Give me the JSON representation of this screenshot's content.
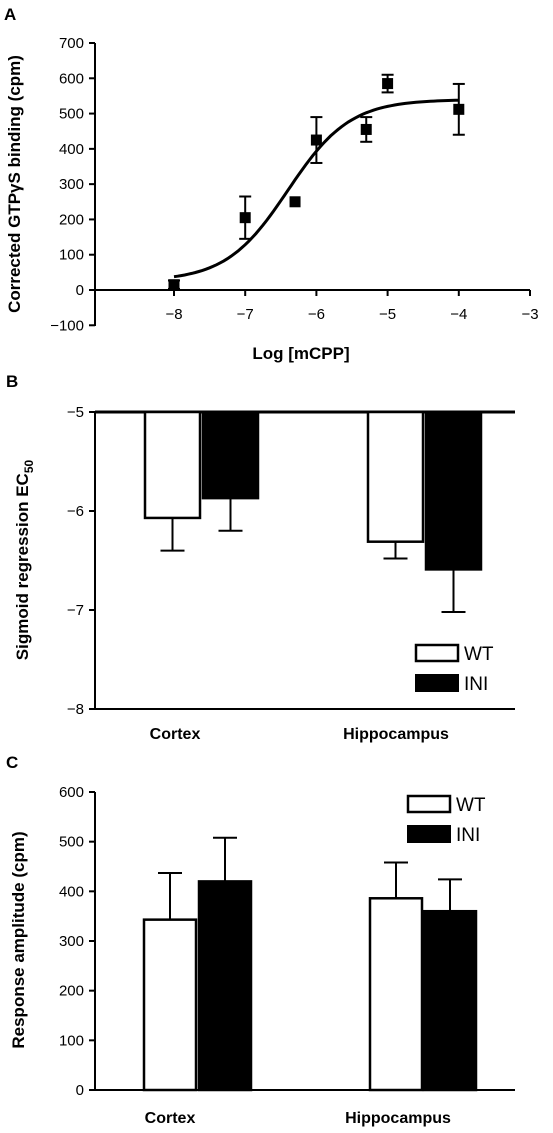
{
  "chart_data": [
    {
      "panel": "A",
      "type": "scatter",
      "xlabel": "Log [mCPP]",
      "ylabel": "Corrected GTPγS binding (cpm)",
      "xlim": [
        -8.5,
        -3
      ],
      "ylim": [
        -100,
        700
      ],
      "xticks": [
        -8,
        -7,
        -6,
        -5,
        -4,
        -3
      ],
      "yticks": [
        -100,
        0,
        100,
        200,
        300,
        400,
        500,
        600,
        700
      ],
      "xtick_labels": [
        "−8",
        "−7",
        "−6",
        "−5",
        "−4",
        "−3"
      ],
      "ytick_labels": [
        "−100",
        "0",
        "100",
        "200",
        "300",
        "400",
        "500",
        "600",
        "700"
      ],
      "points": [
        {
          "x": -8,
          "y": 15,
          "err": 12
        },
        {
          "x": -7,
          "y": 205,
          "err": 60
        },
        {
          "x": -6.3,
          "y": 250,
          "err": 0
        },
        {
          "x": -6,
          "y": 425,
          "err": 65
        },
        {
          "x": -5.3,
          "y": 455,
          "err": 35
        },
        {
          "x": -5,
          "y": 585,
          "err": 25
        },
        {
          "x": -4,
          "y": 512,
          "err": 72
        }
      ],
      "fit": {
        "bottom": 25,
        "top": 540,
        "logEC50": -6.4,
        "hill": 1.0,
        "x_range": [
          -8,
          -4
        ]
      }
    },
    {
      "panel": "B",
      "type": "bar",
      "ylabel": "Sigmoid regression EC",
      "ylabel_sub": "50",
      "categories": [
        "Cortex",
        "Hippocampus"
      ],
      "ylim": [
        -8,
        -5
      ],
      "yticks": [
        -8,
        -7,
        -6,
        -5
      ],
      "ytick_labels": [
        "−8",
        "−7",
        "−6",
        "−5"
      ],
      "series": [
        {
          "name": "WT",
          "color": "#ffffff",
          "values": [
            -6.07,
            -6.31
          ],
          "errors": [
            0.33,
            0.17
          ]
        },
        {
          "name": "INI",
          "color": "#000000",
          "values": [
            -5.87,
            -6.59
          ],
          "errors": [
            0.33,
            0.43
          ]
        }
      ],
      "legend": "lower-right"
    },
    {
      "panel": "C",
      "type": "bar",
      "ylabel": "Response amplitude (cpm)",
      "categories": [
        "Cortex",
        "Hippocampus"
      ],
      "ylim": [
        0,
        600
      ],
      "yticks": [
        0,
        100,
        200,
        300,
        400,
        500,
        600
      ],
      "ytick_labels": [
        "0",
        "100",
        "200",
        "300",
        "400",
        "500",
        "600"
      ],
      "series": [
        {
          "name": "WT",
          "color": "#ffffff",
          "values": [
            343,
            386
          ],
          "errors": [
            94,
            72
          ]
        },
        {
          "name": "INI",
          "color": "#000000",
          "values": [
            420,
            360
          ],
          "errors": [
            88,
            64
          ]
        }
      ],
      "legend": "top-right"
    }
  ]
}
